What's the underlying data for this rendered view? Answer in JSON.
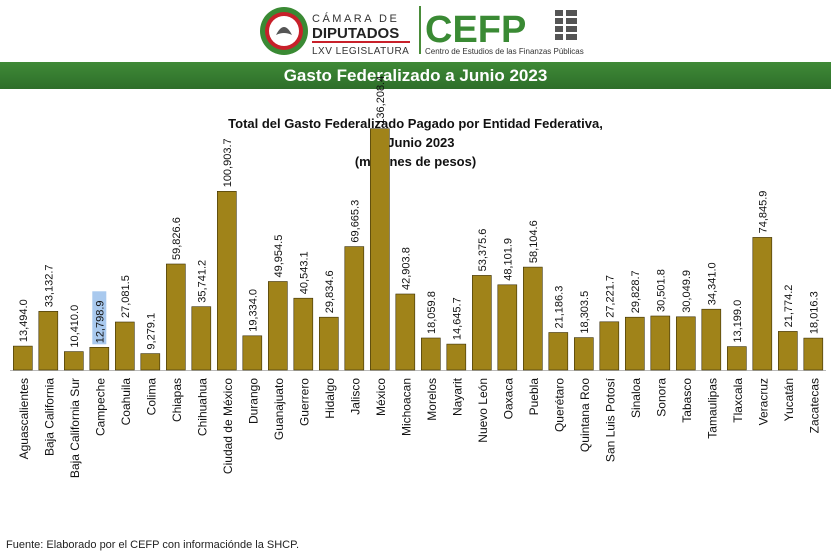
{
  "header": {
    "org_name_line1": "CÁMARA DE",
    "org_name_line2": "DIPUTADOS",
    "org_name_line3": "LXV LEGISLATURA",
    "cefp_acronym": "CEFP",
    "cefp_subtitle": "Centro de Estudios de las Finanzas Públicas",
    "colors": {
      "green": "#3a8a34",
      "red": "#c8202a"
    }
  },
  "banner": {
    "title": "Gasto Federalizado a Junio 2023"
  },
  "chart_data": {
    "type": "bar",
    "title_lines": [
      "Total del Gasto Federalizado Pagado por Entidad Federativa,",
      "a Junio 2023",
      "(millones de pesos)"
    ],
    "xlabel": "",
    "ylabel": "",
    "ylim": [
      0,
      140000
    ],
    "grid": false,
    "bar_color": "#a08319",
    "categories": [
      "Aguascalientes",
      "Baja California",
      "Baja California Sur",
      "Campeche",
      "Coahuila",
      "Colima",
      "Chiapas",
      "Chihuahua",
      "Ciudad de México",
      "Durango",
      "Guanajuato",
      "Guerrero",
      "Hidalgo",
      "Jalisco",
      "México",
      "Michoacan",
      "Morelos",
      "Nayarit",
      "Nuevo León",
      "Oaxaca",
      "Puebla",
      "Querétaro",
      "Quintana Roo",
      "San Luis Potosí",
      "Sinaloa",
      "Sonora",
      "Tabasco",
      "Tamaulipas",
      "Tlaxcala",
      "Veracruz",
      "Yucatán",
      "Zacatecas"
    ],
    "values": [
      13494.0,
      33132.7,
      10410.0,
      12798.9,
      27081.5,
      9279.1,
      59826.6,
      35741.2,
      100903.7,
      19334.0,
      49954.5,
      40543.1,
      29834.6,
      69665.3,
      136208.4,
      42903.8,
      18059.8,
      14645.7,
      53375.6,
      48101.9,
      58104.6,
      21186.3,
      18303.5,
      27221.7,
      29828.7,
      30501.8,
      30049.9,
      34341.0,
      13199.0,
      74845.9,
      21774.2,
      18016.3
    ],
    "labels": [
      "13,494.0",
      "33,132.7",
      "10,410.0",
      "12,798.9",
      "27,081.5",
      "9,279.1",
      "59,826.6",
      "35,741.2",
      "100,903.7",
      "19,334.0",
      "49,954.5",
      "40,543.1",
      "29,834.6",
      "69,665.3",
      "136,208.4",
      "42,903.8",
      "18,059.8",
      "14,645.7",
      "53,375.6",
      "48,101.9",
      "58,104.6",
      "21,186.3",
      "18,303.5",
      "27,221.7",
      "29,828.7",
      "30,501.8",
      "30,049.9",
      "34,341.0",
      "13,199.0",
      "74,845.9",
      "21,774.2",
      "18,016.3"
    ],
    "highlighted_label": "12,798.9"
  },
  "source": "Fuente: Elaborado por el CEFP con informaciónde la SHCP."
}
